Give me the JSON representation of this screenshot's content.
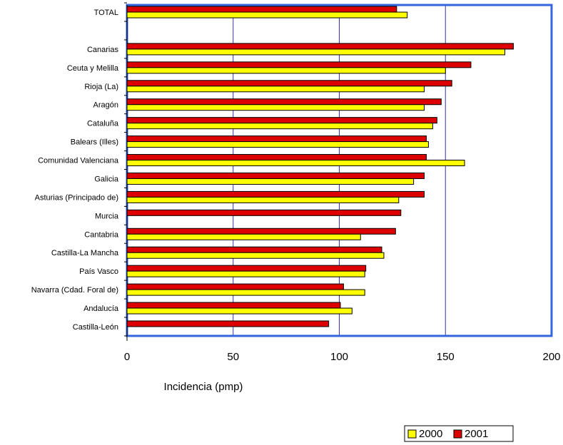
{
  "chart_data": {
    "type": "bar",
    "orientation": "horizontal",
    "categories": [
      "TOTAL",
      "",
      "Canarias",
      "Ceuta y Melilla",
      "Rioja (La)",
      "Aragón",
      "Cataluña",
      "Balears (Illes)",
      "Comunidad Valenciana",
      "Galicia",
      "Asturias (Principado de)",
      "Murcia",
      "Cantabria",
      "Castilla-La Mancha",
      "País Vasco",
      "Navarra (Cdad. Foral de)",
      "Andalucía",
      "Castilla-León"
    ],
    "series": [
      {
        "name": "2000",
        "color": "#ffff00",
        "values": [
          132,
          null,
          178,
          150,
          140,
          140,
          144,
          142,
          159,
          135,
          128,
          null,
          110,
          121,
          112,
          112,
          106,
          null
        ]
      },
      {
        "name": "2001",
        "color": "#dd0000",
        "values": [
          127,
          null,
          182,
          162,
          153,
          148,
          146,
          141,
          141,
          140,
          140,
          129,
          126.5,
          120,
          112.5,
          102,
          100.5,
          95
        ]
      }
    ],
    "xlabel": "Incidencia (pmp)",
    "ylabel": "",
    "xlim": [
      0,
      200
    ],
    "xticks": [
      "0",
      "50",
      "100",
      "150",
      "200"
    ],
    "grid": true,
    "gridline_color": "#3333aa",
    "frame_color": "#3366dd",
    "legend_position": "bottom-right"
  }
}
